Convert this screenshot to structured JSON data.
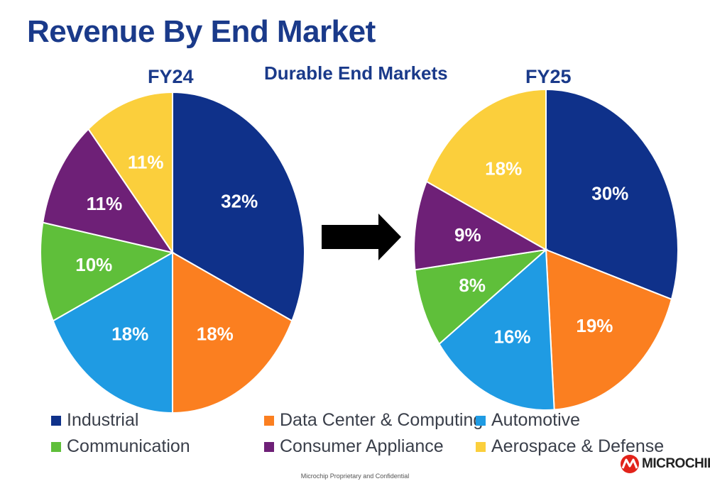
{
  "page": {
    "title": "Revenue By End Market",
    "subtitle": "Durable End Markets",
    "footer": "Microchip Proprietary and Confidential",
    "logo_text": "MICROCHIP",
    "logo_icon": "microchip-logo-icon",
    "arrow_icon": "right-arrow-icon"
  },
  "legend": [
    {
      "label": "Industrial",
      "color": "#0f318a"
    },
    {
      "label": "Data Center & Computing",
      "color": "#fb7f20"
    },
    {
      "label": "Automotive",
      "color": "#1f9be3"
    },
    {
      "label": "Communication",
      "color": "#5fbf3a"
    },
    {
      "label": "Consumer Appliance",
      "color": "#6e2077"
    },
    {
      "label": "Aerospace & Defense",
      "color": "#fbcf3c"
    }
  ],
  "chart_data": [
    {
      "type": "pie",
      "title": "FY24",
      "start": "12 o'clock",
      "direction": "clockwise",
      "slices": [
        {
          "name": "Industrial",
          "value": 32,
          "label": "32%"
        },
        {
          "name": "Data Center & Computing",
          "value": 18,
          "label": "18%"
        },
        {
          "name": "Automotive",
          "value": 18,
          "label": "18%"
        },
        {
          "name": "Communication",
          "value": 10,
          "label": "10%"
        },
        {
          "name": "Consumer Appliance",
          "value": 11,
          "label": "11%"
        },
        {
          "name": "Aerospace & Defense",
          "value": 11,
          "label": "11%"
        }
      ]
    },
    {
      "type": "pie",
      "title": "FY25",
      "start": "12 o'clock",
      "direction": "clockwise",
      "slices": [
        {
          "name": "Industrial",
          "value": 30,
          "label": "30%"
        },
        {
          "name": "Data Center & Computing",
          "value": 19,
          "label": "19%"
        },
        {
          "name": "Automotive",
          "value": 16,
          "label": "16%"
        },
        {
          "name": "Communication",
          "value": 8,
          "label": "8%"
        },
        {
          "name": "Consumer Appliance",
          "value": 9,
          "label": "9%"
        },
        {
          "name": "Aerospace & Defense",
          "value": 18,
          "label": "18%"
        }
      ]
    }
  ]
}
